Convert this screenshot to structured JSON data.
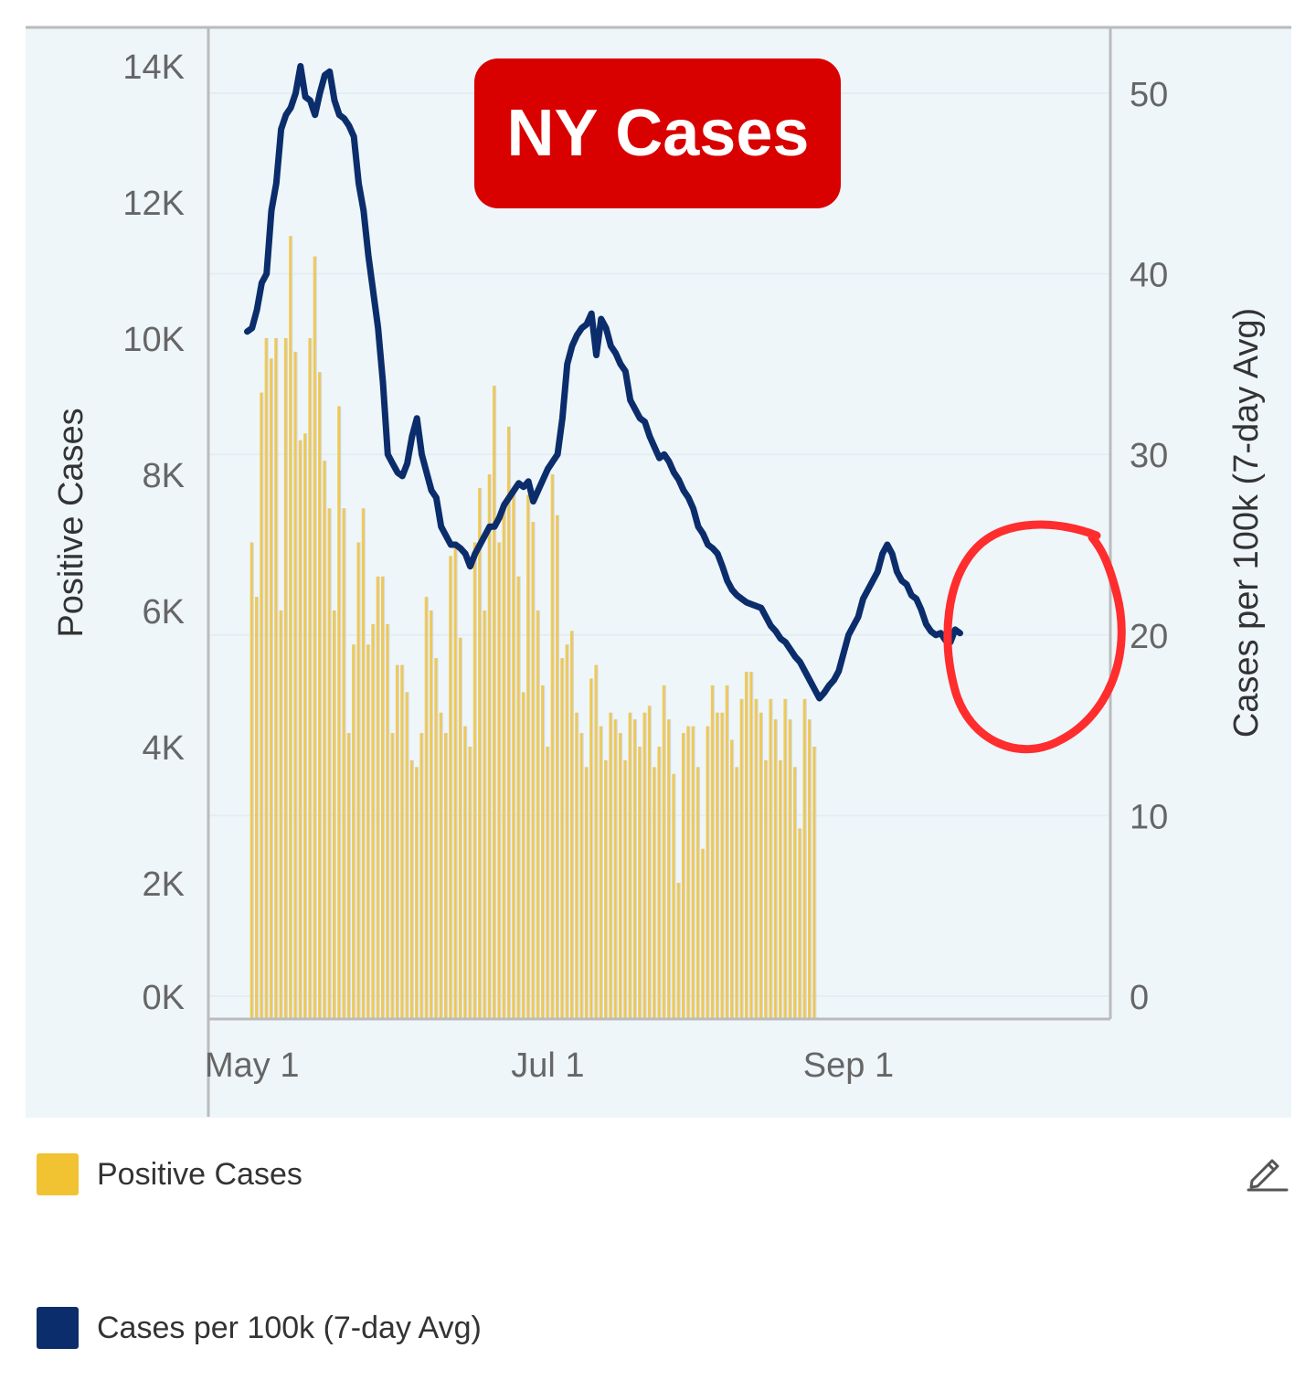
{
  "colors": {
    "plot_background": "#eef6fa",
    "bar": "#f1c232",
    "bar_overlay": "#cccccc",
    "line": "#0c2d6b",
    "badge": "#d90000",
    "annotation_circle": "#ff2d2d",
    "axis": "#bbbbbb"
  },
  "badge": {
    "text": "NY Cases"
  },
  "legend": {
    "items": [
      {
        "label": "Positive Cases",
        "color": "#f1c232"
      },
      {
        "label": "Cases per 100k (7-day Avg)",
        "color": "#0c2d6b"
      }
    ]
  },
  "icons": {
    "edit": "pencil-edit-icon"
  },
  "chart_data": {
    "type": "bar+line",
    "title": "NY Cases",
    "x_ticks": [
      {
        "label": "May 1",
        "day": 0
      },
      {
        "label": "Jul 1",
        "day": 61
      },
      {
        "label": "Sep 1",
        "day": 123
      }
    ],
    "x_range_days": [
      -9,
      177
    ],
    "left_axis": {
      "label": "Positive Cases",
      "ticks": [
        "0K",
        "2K",
        "4K",
        "6K",
        "8K",
        "10K",
        "12K",
        "14K"
      ],
      "range": [
        0,
        14000
      ]
    },
    "right_axis": {
      "label": "Cases per 100k (7-day Avg)",
      "ticks": [
        "0",
        "10",
        "20",
        "30",
        "40",
        "50"
      ],
      "range": [
        0,
        50
      ]
    },
    "series": [
      {
        "name": "Positive Cases",
        "type": "bar",
        "axis": "left",
        "start_day": 0,
        "values": [
          7000,
          6200,
          9200,
          10000,
          9700,
          10000,
          6000,
          10000,
          11500,
          9800,
          8500,
          8600,
          10000,
          11200,
          9500,
          8200,
          7500,
          6000,
          9000,
          7500,
          4200,
          5500,
          7000,
          7500,
          5500,
          5800,
          6500,
          6500,
          5800,
          4200,
          5200,
          5200,
          4800,
          3800,
          3700,
          4200,
          6200,
          6000,
          5300,
          4500,
          4200,
          6800,
          7000,
          5600,
          4300,
          4000,
          7000,
          7800,
          6000,
          8000,
          9300,
          7000,
          7500,
          8700,
          7800,
          6500,
          4800,
          7700,
          7300,
          6000,
          4900,
          4000,
          8000,
          7400,
          5300,
          5500,
          5700,
          4500,
          4200,
          3700,
          5000,
          5200,
          4300,
          3800,
          4500,
          4400,
          4200,
          3800,
          4500,
          4400,
          4000,
          4500,
          4600,
          3700,
          4000,
          4900,
          4400,
          3600,
          2000,
          4200,
          4300,
          4300,
          3700,
          2500,
          4300,
          4900,
          4500,
          4500,
          4900,
          4100,
          3700,
          4700,
          5100,
          5100,
          4700,
          4500,
          3800,
          4700,
          4400,
          3800,
          4700,
          4400,
          3700,
          2800,
          4700,
          4400,
          4000
        ]
      },
      {
        "name": "Cases per 100k (7-day Avg)",
        "type": "line",
        "axis": "right",
        "points": [
          [
            -1,
            36.8
          ],
          [
            0,
            37
          ],
          [
            1,
            38
          ],
          [
            2,
            39.5
          ],
          [
            3,
            40
          ],
          [
            4,
            43.5
          ],
          [
            5,
            45
          ],
          [
            6,
            48
          ],
          [
            7,
            48.8
          ],
          [
            8,
            49.2
          ],
          [
            9,
            50
          ],
          [
            10,
            51.5
          ],
          [
            11,
            49.8
          ],
          [
            12,
            49.6
          ],
          [
            13,
            48.8
          ],
          [
            14,
            50
          ],
          [
            15,
            51
          ],
          [
            16,
            51.2
          ],
          [
            17,
            49.6
          ],
          [
            18,
            48.8
          ],
          [
            19,
            48.6
          ],
          [
            20,
            48.2
          ],
          [
            21,
            47.6
          ],
          [
            22,
            45
          ],
          [
            23,
            43.5
          ],
          [
            24,
            41
          ],
          [
            25,
            39
          ],
          [
            26,
            37
          ],
          [
            27,
            34
          ],
          [
            28,
            30
          ],
          [
            29,
            29.5
          ],
          [
            30,
            29
          ],
          [
            31,
            28.8
          ],
          [
            32,
            29.5
          ],
          [
            33,
            31
          ],
          [
            34,
            32
          ],
          [
            35,
            30
          ],
          [
            36,
            29
          ],
          [
            37,
            28
          ],
          [
            38,
            27.6
          ],
          [
            39,
            26
          ],
          [
            40,
            25.5
          ],
          [
            41,
            25
          ],
          [
            42,
            25
          ],
          [
            43,
            24.8
          ],
          [
            44,
            24.5
          ],
          [
            45,
            23.8
          ],
          [
            46,
            24.5
          ],
          [
            47,
            25
          ],
          [
            48,
            25.5
          ],
          [
            49,
            26
          ],
          [
            50,
            26
          ],
          [
            51,
            26.5
          ],
          [
            52,
            27.2
          ],
          [
            53,
            27.6
          ],
          [
            54,
            28
          ],
          [
            55,
            28.4
          ],
          [
            56,
            28.2
          ],
          [
            57,
            28.5
          ],
          [
            58,
            27.4
          ],
          [
            59,
            28
          ],
          [
            60,
            28.6
          ],
          [
            61,
            29.2
          ],
          [
            62,
            29.6
          ],
          [
            63,
            30
          ],
          [
            64,
            32
          ],
          [
            65,
            35
          ],
          [
            66,
            36
          ],
          [
            67,
            36.6
          ],
          [
            68,
            37
          ],
          [
            69,
            37.2
          ],
          [
            70,
            37.8
          ],
          [
            71,
            35.5
          ],
          [
            72,
            37.5
          ],
          [
            73,
            37
          ],
          [
            74,
            36
          ],
          [
            75,
            35.6
          ],
          [
            76,
            35
          ],
          [
            77,
            34.6
          ],
          [
            78,
            33
          ],
          [
            79,
            32.5
          ],
          [
            80,
            32
          ],
          [
            81,
            31.8
          ],
          [
            82,
            31
          ],
          [
            83,
            30.4
          ],
          [
            84,
            29.8
          ],
          [
            85,
            30
          ],
          [
            86,
            29.6
          ],
          [
            87,
            29
          ],
          [
            88,
            28.6
          ],
          [
            89,
            28
          ],
          [
            90,
            27.6
          ],
          [
            91,
            27
          ],
          [
            92,
            26
          ],
          [
            93,
            25.6
          ],
          [
            94,
            25
          ],
          [
            95,
            24.8
          ],
          [
            96,
            24.5
          ],
          [
            97,
            23.8
          ],
          [
            98,
            23
          ],
          [
            99,
            22.5
          ],
          [
            100,
            22.2
          ],
          [
            101,
            22
          ],
          [
            102,
            21.8
          ],
          [
            103,
            21.7
          ],
          [
            104,
            21.6
          ],
          [
            105,
            21.5
          ],
          [
            106,
            21
          ],
          [
            107,
            20.5
          ],
          [
            108,
            20.2
          ],
          [
            109,
            19.8
          ],
          [
            110,
            19.6
          ],
          [
            111,
            19.2
          ],
          [
            112,
            18.8
          ],
          [
            113,
            18.5
          ],
          [
            114,
            18
          ],
          [
            115,
            17.5
          ],
          [
            116,
            17
          ],
          [
            117,
            16.5
          ],
          [
            118,
            16.8
          ],
          [
            119,
            17.2
          ],
          [
            120,
            17.5
          ],
          [
            121,
            18
          ],
          [
            122,
            19
          ],
          [
            123,
            20
          ],
          [
            124,
            20.5
          ],
          [
            125,
            21
          ],
          [
            126,
            22
          ],
          [
            127,
            22.5
          ],
          [
            128,
            23
          ],
          [
            129,
            23.5
          ],
          [
            130,
            24.5
          ],
          [
            131,
            25
          ],
          [
            132,
            24.5
          ],
          [
            133,
            23.5
          ],
          [
            134,
            23
          ],
          [
            135,
            22.8
          ],
          [
            136,
            22.2
          ],
          [
            137,
            22
          ],
          [
            138,
            21.4
          ],
          [
            139,
            20.6
          ],
          [
            140,
            20.2
          ],
          [
            141,
            20
          ],
          [
            142,
            20.1
          ],
          [
            143,
            19.7
          ],
          [
            144,
            19.6
          ],
          [
            145,
            20.3
          ],
          [
            146,
            20.1
          ]
        ]
      }
    ]
  }
}
